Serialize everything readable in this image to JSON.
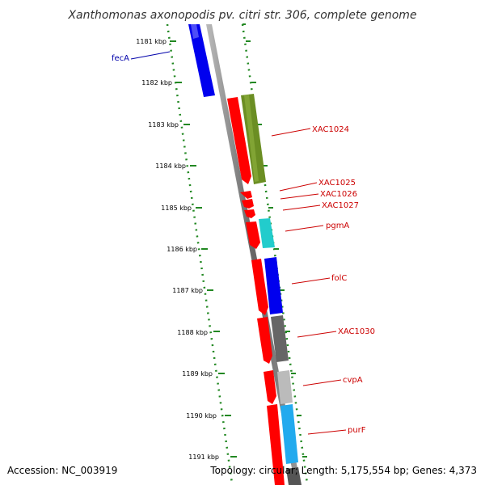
{
  "title": "Xanthomonas axonopodis pv. citri str. 306, complete genome",
  "accession": "Accession: NC_003919",
  "summary": "Topology: circular; Length: 5,175,554 bp; Genes: 4,373",
  "ruler": [
    "1181 kbp",
    "1182 kbp",
    "1183 kbp",
    "1184 kbp",
    "1185 kbp",
    "1186 kbp",
    "1187 kbp",
    "1188 kbp",
    "1189 kbp",
    "1190 kbp",
    "1191 kbp"
  ],
  "genes": [
    {
      "label": "fecA",
      "color": "#0000dd",
      "strand": "reverse"
    },
    {
      "label": "XAC1024",
      "color": "#dd0000",
      "strand": "forward"
    },
    {
      "label": "XAC1025",
      "color": "#dd0000",
      "strand": "forward"
    },
    {
      "label": "XAC1026",
      "color": "#dd0000",
      "strand": "forward"
    },
    {
      "label": "XAC1027",
      "color": "#dd0000",
      "strand": "forward"
    },
    {
      "label": "pgmA",
      "color": "#dd0000",
      "strand": "forward"
    },
    {
      "label": "folC",
      "color": "#dd0000",
      "strand": "forward"
    },
    {
      "label": "XAC1030",
      "color": "#dd0000",
      "strand": "forward"
    },
    {
      "label": "cvpA",
      "color": "#dd0000",
      "strand": "forward"
    },
    {
      "label": "purF",
      "color": "#dd0000",
      "strand": "forward"
    }
  ],
  "colors": {
    "backbone": "#888888",
    "ruler": "#228822",
    "forward_cds": "#ff0000",
    "reverse_cds": "#0000ee",
    "cog_olive": "#6b8e23",
    "cog_cyan": "#22cccc",
    "cog_blue": "#0000ee",
    "cog_darkgray": "#666666",
    "cog_lightgray": "#bbbbbb",
    "cog_skyblue": "#22aaee"
  }
}
